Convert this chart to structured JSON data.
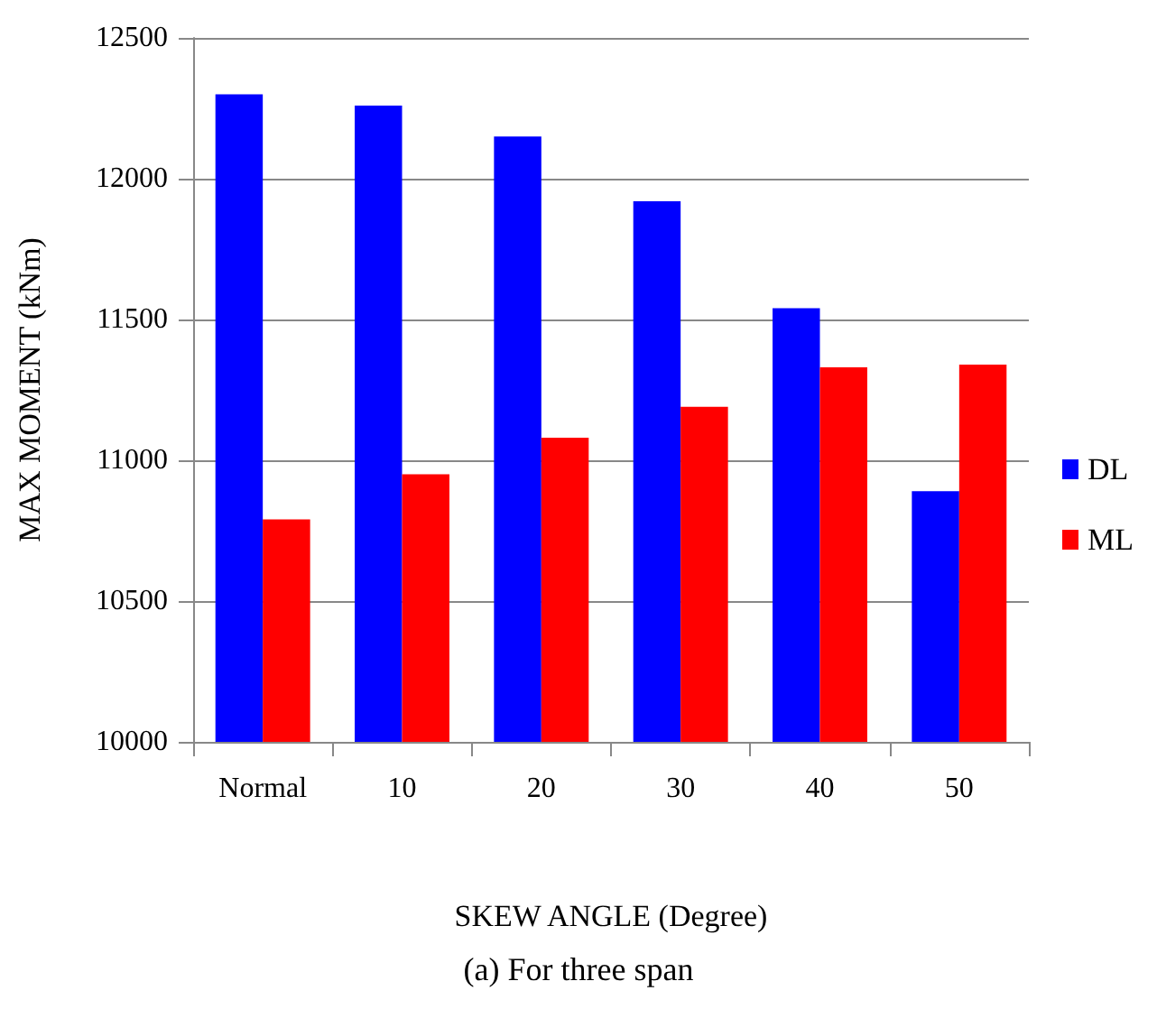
{
  "chart_data": {
    "type": "bar",
    "xlabel": "SKEW ANGLE (Degree)",
    "ylabel": "MAX MOMENT (kNm)",
    "annotations": [
      "(a) For three span"
    ],
    "categories": [
      "Normal",
      "10",
      "20",
      "30",
      "40",
      "50"
    ],
    "series": [
      {
        "name": "DL",
        "color": "#0000ff",
        "values": [
          12300,
          12260,
          12150,
          11920,
          11540,
          10890
        ]
      },
      {
        "name": "ML",
        "color": "#ff0000",
        "values": [
          10790,
          10950,
          11080,
          11190,
          11330,
          11340
        ]
      }
    ],
    "ylim": [
      10000,
      12500
    ],
    "yticks": [
      10000,
      10500,
      11000,
      11500,
      12000,
      12500
    ],
    "grid": "y",
    "legend": "right"
  }
}
